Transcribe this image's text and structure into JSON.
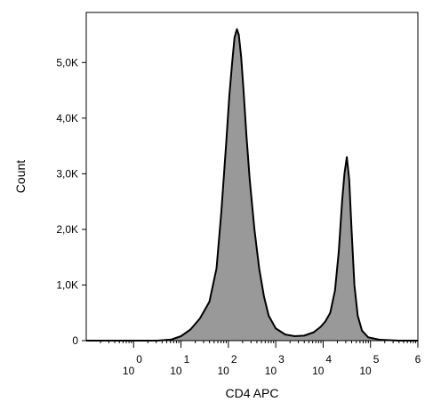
{
  "chart_data": {
    "type": "area",
    "xlabel": "CD4 APC",
    "ylabel": "Count",
    "x_scale": "log",
    "xlim": [
      -1,
      6
    ],
    "ylim": [
      0,
      5900
    ],
    "grid": false,
    "y_ticks": [
      {
        "value": 0,
        "label": "0"
      },
      {
        "value": 1000,
        "label": "1,0K"
      },
      {
        "value": 2000,
        "label": "2,0K"
      },
      {
        "value": 3000,
        "label": "3,0K"
      },
      {
        "value": 4000,
        "label": "4,0K"
      },
      {
        "value": 5000,
        "label": "5,0K"
      }
    ],
    "x_ticks": [
      {
        "value": 0,
        "base": "10",
        "exp": "0"
      },
      {
        "value": 1,
        "base": "10",
        "exp": "1"
      },
      {
        "value": 2,
        "base": "10",
        "exp": "2"
      },
      {
        "value": 3,
        "base": "10",
        "exp": "3"
      },
      {
        "value": 4,
        "base": "10",
        "exp": "4"
      },
      {
        "value": 5,
        "base": "10",
        "exp": "5"
      },
      {
        "value": 6,
        "base": "",
        "exp": "6"
      }
    ],
    "fill_color": "#999999",
    "stroke_color": "#000000",
    "series": [
      {
        "x": [
          -1.0,
          0.5,
          0.8,
          1.0,
          1.2,
          1.4,
          1.6,
          1.75,
          1.85,
          1.95,
          2.02,
          2.08,
          2.13,
          2.18,
          2.22,
          2.27,
          2.32,
          2.38,
          2.45,
          2.55,
          2.65,
          2.75,
          2.85,
          3.0,
          3.2,
          3.4,
          3.6,
          3.8,
          3.95,
          4.05,
          4.15,
          4.25,
          4.33,
          4.4,
          4.45,
          4.5,
          4.55,
          4.6,
          4.66,
          4.73,
          4.82,
          4.95,
          5.2,
          5.6,
          6.0
        ],
        "y": [
          0,
          0,
          20,
          80,
          200,
          400,
          700,
          1300,
          2300,
          3500,
          4400,
          5000,
          5450,
          5600,
          5500,
          5100,
          4500,
          3700,
          2900,
          2000,
          1300,
          800,
          450,
          220,
          110,
          80,
          90,
          150,
          250,
          350,
          500,
          900,
          1600,
          2500,
          3000,
          3300,
          2900,
          2000,
          1000,
          450,
          180,
          60,
          15,
          0,
          0
        ]
      }
    ]
  }
}
